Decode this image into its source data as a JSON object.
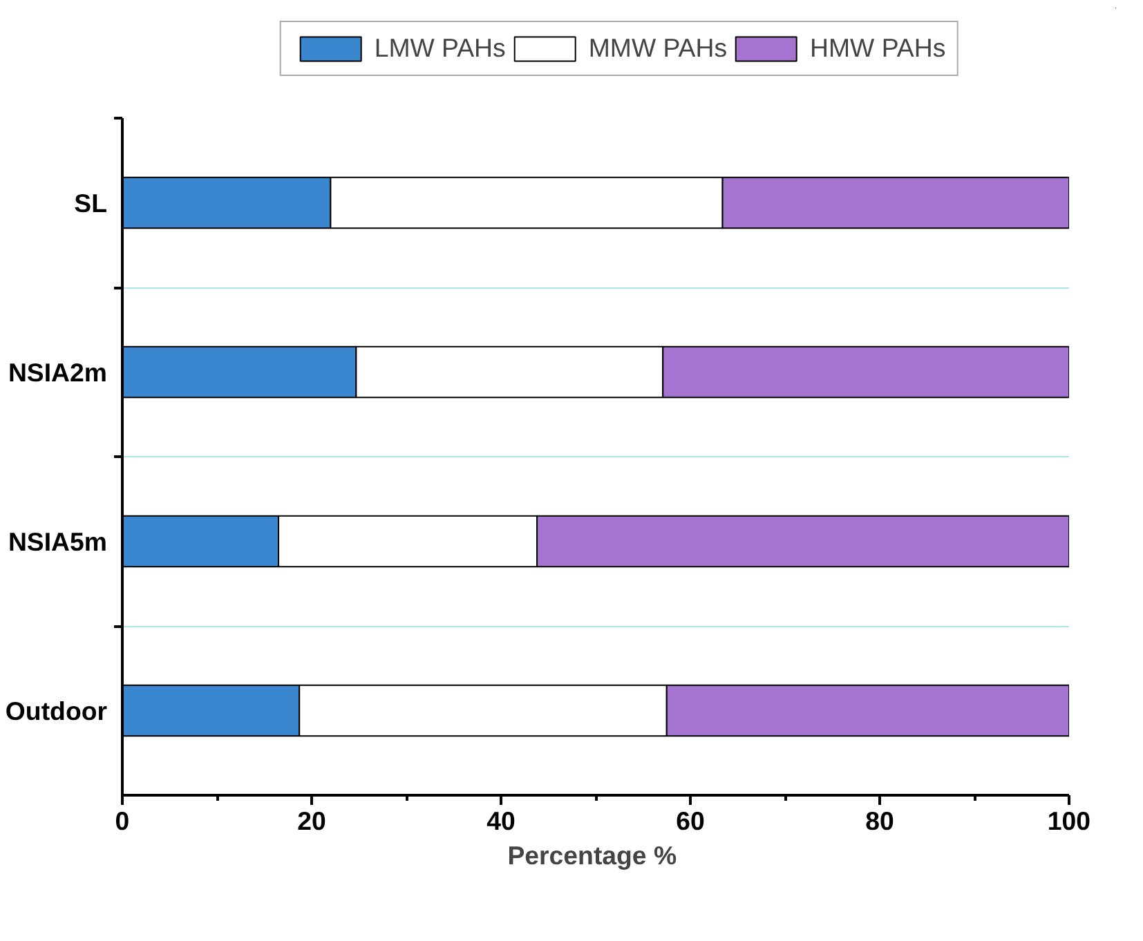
{
  "chart_data": {
    "type": "bar",
    "orientation": "horizontal",
    "stacked": true,
    "categories": [
      "SL",
      "NSIA2m",
      "NSIA5m",
      "Outdoor"
    ],
    "series": [
      {
        "name": "LMW PAHs",
        "color": "#3a87d0",
        "values": [
          22.0,
          24.7,
          16.5,
          18.7
        ]
      },
      {
        "name": "MMW PAHs",
        "color": "#ffffff",
        "values": [
          41.4,
          32.4,
          27.3,
          38.8
        ]
      },
      {
        "name": "HMW PAHs",
        "color": "#a573d0",
        "values": [
          36.6,
          42.9,
          56.2,
          42.5
        ]
      }
    ],
    "xlabel": "Percentage  %",
    "xlim": [
      0,
      100
    ],
    "xticks": [
      0,
      20,
      40,
      60,
      80,
      100
    ],
    "grid": "y",
    "legend": "top"
  }
}
